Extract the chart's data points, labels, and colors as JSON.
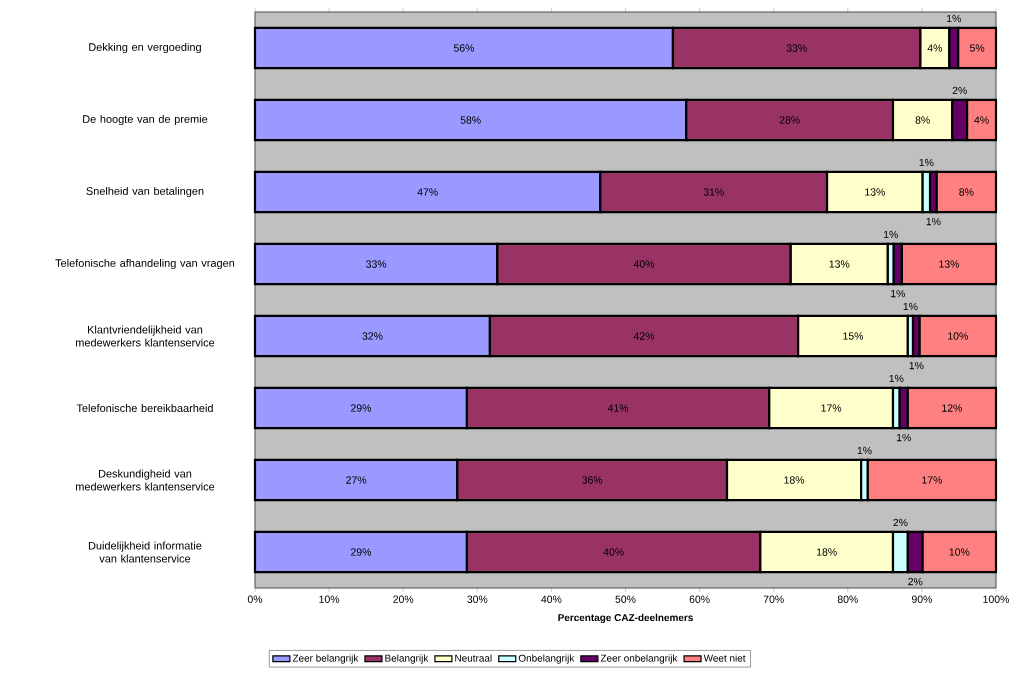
{
  "chart_data": {
    "type": "bar",
    "orientation": "horizontal",
    "stacked": true,
    "categories": [
      "Dekking en vergoeding",
      "De hoogte van de premie",
      "Snelheid van betalingen",
      "Telefonische afhandeling van vragen",
      "Klantvriendelijkheid van medewerkers klantenservice",
      "Telefonische bereikbaarheid",
      "Deskundigheid van medewerkers klantenservice",
      "Duidelijkheid informatie van klantenservice"
    ],
    "series": [
      {
        "name": "Zeer belangrijk",
        "color": "#9999ff",
        "values": [
          56.4,
          58.2,
          46.6,
          32.7,
          31.7,
          28.6,
          27.3,
          28.6
        ],
        "value_labels": [
          "56%",
          "58%",
          "47%",
          "33%",
          "32%",
          "29%",
          "27%",
          "29%"
        ]
      },
      {
        "name": "Belangrijk",
        "color": "#993366",
        "values": [
          33.4,
          27.9,
          30.6,
          39.6,
          41.6,
          40.8,
          36.4,
          39.6
        ],
        "value_labels": [
          "33%",
          "28%",
          "31%",
          "40%",
          "42%",
          "41%",
          "36%",
          "40%"
        ]
      },
      {
        "name": "Neutraal",
        "color": "#ffffcc",
        "values": [
          3.9,
          8.0,
          12.9,
          13.1,
          14.8,
          16.7,
          18.1,
          17.9
        ],
        "value_labels": [
          "4%",
          "8%",
          "13%",
          "13%",
          "15%",
          "17%",
          "18%",
          "18%"
        ]
      },
      {
        "name": "Onbelangrijk",
        "color": "#ccffff",
        "values": [
          null,
          null,
          1.0,
          0.8,
          0.7,
          0.9,
          0.9,
          2.0
        ],
        "value_labels": [
          null,
          null,
          "1%",
          "1%",
          "1%",
          "1%",
          "1%",
          "2%"
        ]
      },
      {
        "name": "Zeer onbelangrijk",
        "color": "#660066",
        "values": [
          1.2,
          2.0,
          0.9,
          1.1,
          0.9,
          1.1,
          null,
          2.0
        ],
        "value_labels": [
          "1%",
          "2%",
          "1%",
          "1%",
          "1%",
          "1%",
          null,
          "2%"
        ]
      },
      {
        "name": "Weet niet",
        "color": "#ff8080",
        "values": [
          5.1,
          3.9,
          8.0,
          12.7,
          10.3,
          11.9,
          17.3,
          9.9
        ],
        "value_labels": [
          "5%",
          "4%",
          "8%",
          "13%",
          "10%",
          "12%",
          "17%",
          "10%"
        ]
      }
    ],
    "xlim": [
      0,
      100
    ],
    "xticks": [
      {
        "value": 0,
        "label": "0%"
      },
      {
        "value": 10,
        "label": "10%"
      },
      {
        "value": 20,
        "label": "20%"
      },
      {
        "value": 30,
        "label": "30%"
      },
      {
        "value": 40,
        "label": "40%"
      },
      {
        "value": 50,
        "label": "50%"
      },
      {
        "value": 60,
        "label": "60%"
      },
      {
        "value": 70,
        "label": "70%"
      },
      {
        "value": 80,
        "label": "80%"
      },
      {
        "value": 90,
        "label": "90%"
      },
      {
        "value": 100,
        "label": "100%"
      }
    ],
    "xlabel": "Percentage CAZ-deelnemers",
    "grid": false,
    "legend": "bottom"
  }
}
